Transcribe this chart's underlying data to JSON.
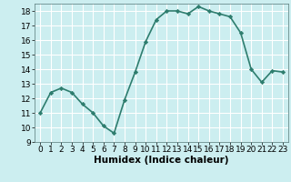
{
  "x": [
    0,
    1,
    2,
    3,
    4,
    5,
    6,
    7,
    8,
    9,
    10,
    11,
    12,
    13,
    14,
    15,
    16,
    17,
    18,
    19,
    20,
    21,
    22,
    23
  ],
  "y": [
    11.0,
    12.4,
    12.7,
    12.4,
    11.6,
    11.0,
    10.1,
    9.6,
    11.9,
    13.8,
    15.9,
    17.4,
    18.0,
    18.0,
    17.8,
    18.3,
    18.0,
    17.8,
    17.6,
    16.5,
    14.0,
    13.1,
    13.9,
    13.8
  ],
  "xlim": [
    -0.5,
    23.5
  ],
  "ylim": [
    9,
    18.5
  ],
  "yticks": [
    9,
    10,
    11,
    12,
    13,
    14,
    15,
    16,
    17,
    18
  ],
  "xticks": [
    0,
    1,
    2,
    3,
    4,
    5,
    6,
    7,
    8,
    9,
    10,
    11,
    12,
    13,
    14,
    15,
    16,
    17,
    18,
    19,
    20,
    21,
    22,
    23
  ],
  "xlabel": "Humidex (Indice chaleur)",
  "line_color": "#2e7d6e",
  "bg_color": "#cceef0",
  "grid_color": "#ffffff",
  "marker": "D",
  "marker_size": 2.2,
  "line_width": 1.2,
  "xlabel_fontsize": 7.5,
  "tick_fontsize": 6.5
}
